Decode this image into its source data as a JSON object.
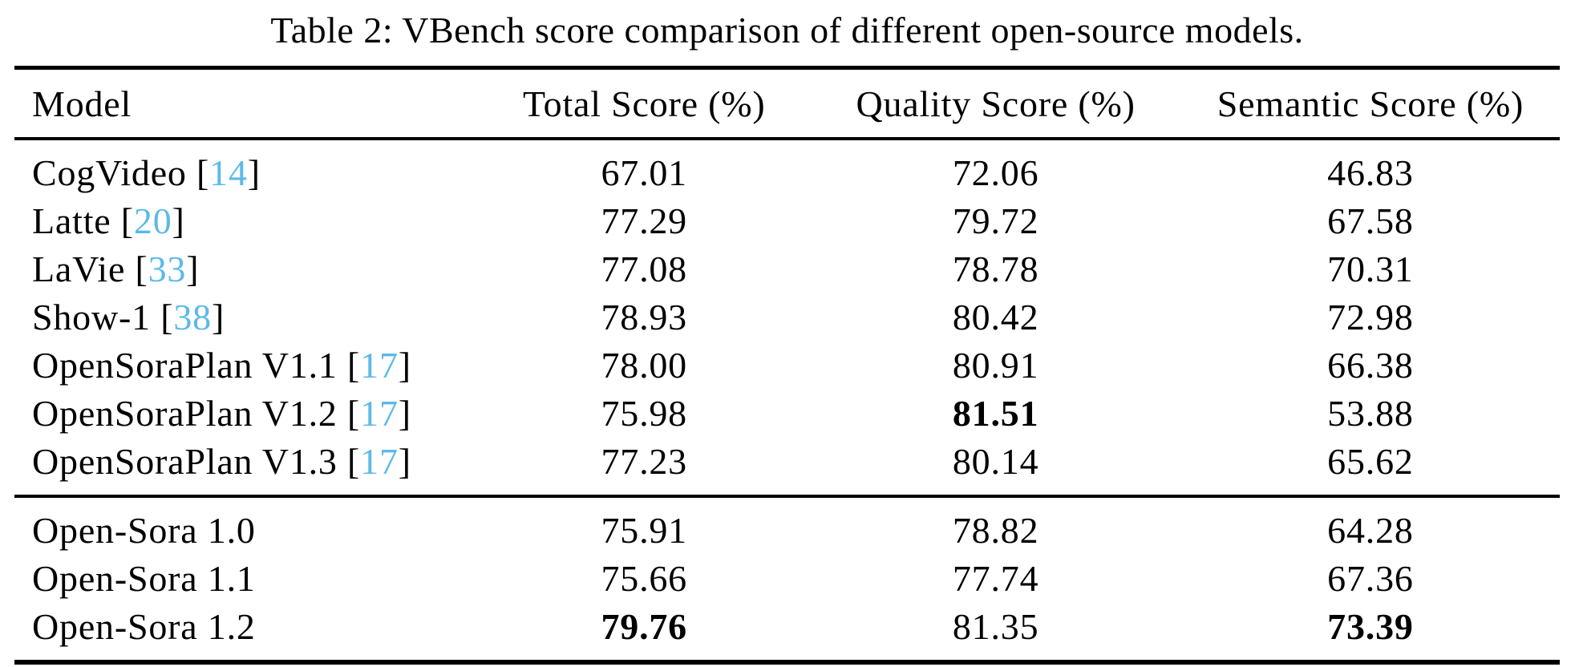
{
  "caption": "Table 2: VBench score comparison of different open-source models.",
  "colors": {
    "text": "#000000",
    "background": "#FFFFFF",
    "rule": "#000000",
    "citation_link": "#5CB9E9"
  },
  "table": {
    "columns": [
      {
        "label": "Model"
      },
      {
        "label": "Total Score (%)"
      },
      {
        "label": "Quality Score (%)"
      },
      {
        "label": "Semantic Score (%)"
      }
    ],
    "groups": [
      {
        "rows": [
          {
            "model": "CogVideo",
            "citation": "14",
            "total": "67.01",
            "quality": "72.06",
            "semantic": "46.83",
            "bold": []
          },
          {
            "model": "Latte",
            "citation": "20",
            "total": "77.29",
            "quality": "79.72",
            "semantic": "67.58",
            "bold": []
          },
          {
            "model": "LaVie",
            "citation": "33",
            "total": "77.08",
            "quality": "78.78",
            "semantic": "70.31",
            "bold": []
          },
          {
            "model": "Show-1",
            "citation": "38",
            "total": "78.93",
            "quality": "80.42",
            "semantic": "72.98",
            "bold": []
          },
          {
            "model": "OpenSoraPlan V1.1",
            "citation": "17",
            "total": "78.00",
            "quality": "80.91",
            "semantic": "66.38",
            "bold": []
          },
          {
            "model": "OpenSoraPlan V1.2",
            "citation": "17",
            "total": "75.98",
            "quality": "81.51",
            "semantic": "53.88",
            "bold": [
              "quality"
            ]
          },
          {
            "model": "OpenSoraPlan V1.3",
            "citation": "17",
            "total": "77.23",
            "quality": "80.14",
            "semantic": "65.62",
            "bold": []
          }
        ]
      },
      {
        "rows": [
          {
            "model": "Open-Sora 1.0",
            "citation": null,
            "total": "75.91",
            "quality": "78.82",
            "semantic": "64.28",
            "bold": []
          },
          {
            "model": "Open-Sora 1.1",
            "citation": null,
            "total": "75.66",
            "quality": "77.74",
            "semantic": "67.36",
            "bold": []
          },
          {
            "model": "Open-Sora 1.2",
            "citation": null,
            "total": "79.76",
            "quality": "81.35",
            "semantic": "73.39",
            "bold": [
              "total",
              "semantic"
            ]
          }
        ]
      }
    ]
  }
}
